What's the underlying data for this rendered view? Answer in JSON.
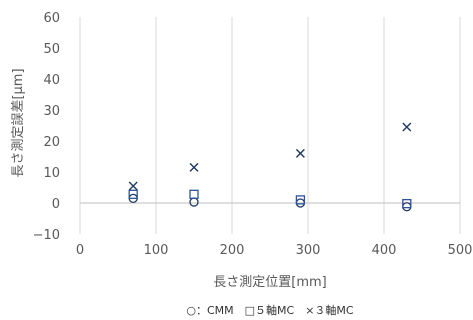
{
  "chart_data": {
    "type": "scatter",
    "title": "",
    "xlabel": "長さ測定位置[mm]",
    "ylabel": "長さ測定誤差[μm]",
    "xlim": [
      0,
      500
    ],
    "ylim": [
      -10,
      60
    ],
    "x_ticks": [
      0,
      100,
      200,
      300,
      400,
      500
    ],
    "y_ticks": [
      -10,
      0,
      10,
      20,
      30,
      40,
      50,
      60
    ],
    "x_tick_labels": [
      "0",
      "100",
      "200",
      "300",
      "400",
      "500"
    ],
    "y_tick_labels": [
      "−10",
      "0",
      "10",
      "20",
      "30",
      "40",
      "50",
      "60"
    ],
    "grid": "vertical",
    "legend_position": "bottom",
    "legend_text": "○：CMM　□５軸MC　×３軸MC",
    "series": [
      {
        "name": "CMM",
        "marker": "circle",
        "color": "#1f3864",
        "points": [
          [
            70,
            1.5
          ],
          [
            150,
            0.3
          ],
          [
            290,
            0.0
          ],
          [
            430,
            -1.2
          ]
        ]
      },
      {
        "name": "５軸MC",
        "marker": "square",
        "color": "#2f5496",
        "points": [
          [
            70,
            2.8
          ],
          [
            150,
            2.8
          ],
          [
            290,
            1.0
          ],
          [
            430,
            -0.2
          ]
        ]
      },
      {
        "name": "３軸MC",
        "marker": "x",
        "color": "#1f3864",
        "points": [
          [
            70,
            5.5
          ],
          [
            150,
            11.5
          ],
          [
            290,
            16.0
          ],
          [
            430,
            24.5
          ]
        ]
      }
    ]
  }
}
